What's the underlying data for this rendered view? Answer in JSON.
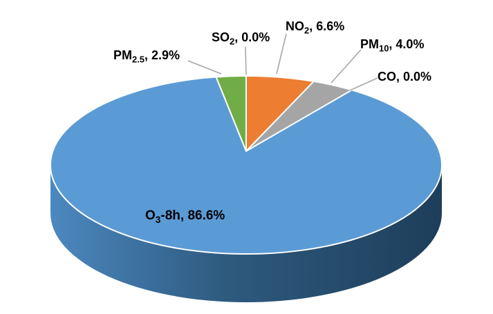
{
  "chart_data": {
    "type": "pie",
    "style": "3d-perspective",
    "title": "",
    "legend": "none",
    "value_suffix": "%",
    "direction": "clockwise",
    "start_angle_deg": 0,
    "slices": [
      {
        "name": "NO2",
        "value": 6.6,
        "color": "#ED7D31",
        "label_parts": [
          "NO",
          {
            "sub": "2"
          },
          ", 6.6%"
        ]
      },
      {
        "name": "PM10",
        "value": 4.0,
        "color": "#A5A5A5",
        "label_parts": [
          "PM",
          {
            "sub": "10"
          },
          ", 4.0%"
        ]
      },
      {
        "name": "CO",
        "value": 0.0,
        "color": null,
        "label_parts": [
          "CO, 0.0%"
        ]
      },
      {
        "name": "O3-8h",
        "value": 86.6,
        "color": "#5B9BD5",
        "label_parts": [
          "O",
          {
            "sub": "3"
          },
          "-8h, 86.6%"
        ]
      },
      {
        "name": "PM2.5",
        "value": 2.9,
        "color": "#70AD47",
        "label_parts": [
          "PM",
          {
            "sub": "2.5"
          },
          ", 2.9%"
        ]
      },
      {
        "name": "SO2",
        "value": 0.0,
        "color": null,
        "label_parts": [
          "SO",
          {
            "sub": "2"
          },
          ", 0.0%"
        ]
      }
    ],
    "slice_border_color": "#FFFFFF",
    "leader_line_color": "#A6A6A6",
    "side_gradient": [
      "#4C88C0",
      "#2E5A7E",
      "#1E3E5A"
    ]
  }
}
